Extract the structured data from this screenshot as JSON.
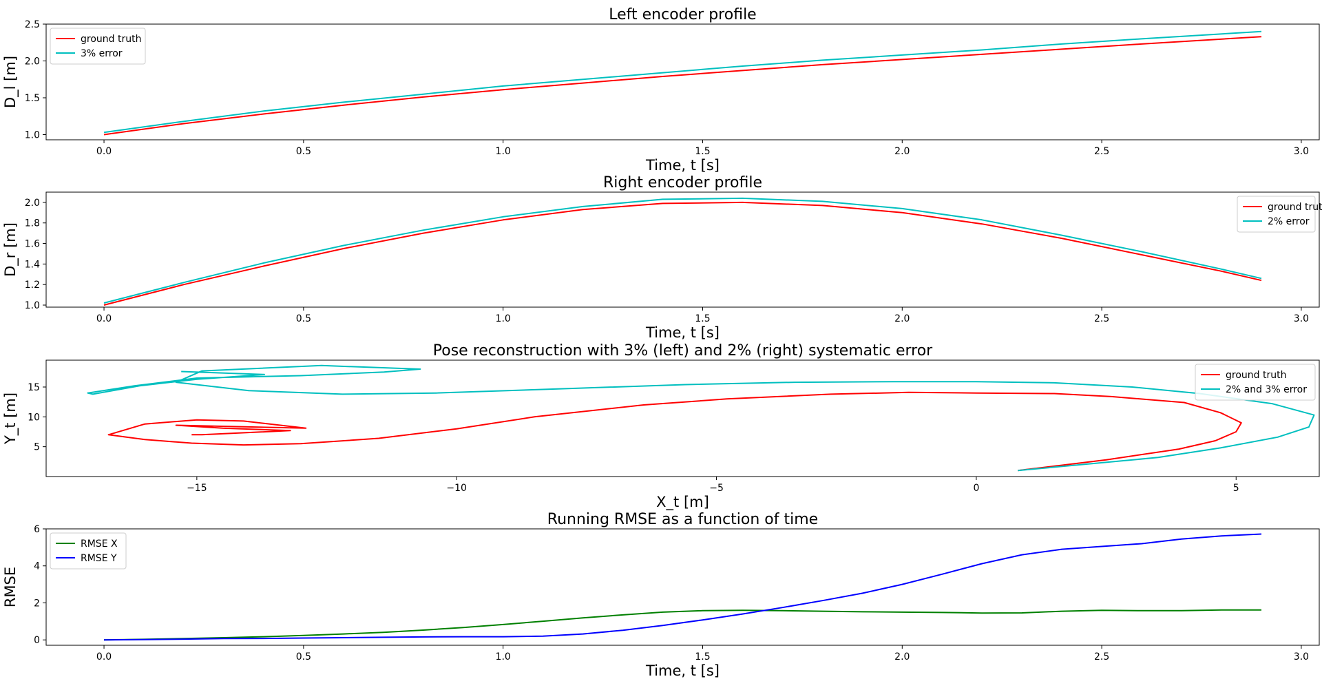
{
  "chart_data": [
    {
      "type": "line",
      "title": "Left encoder profile",
      "xlabel": "Time, t [s]",
      "ylabel": "D_l [m]",
      "xlim": [
        -0.145,
        3.045
      ],
      "ylim": [
        0.93,
        2.5
      ],
      "xticks": [
        0.0,
        0.5,
        1.0,
        1.5,
        2.0,
        2.5,
        3.0
      ],
      "yticks": [
        1.0,
        1.5,
        2.0,
        2.5
      ],
      "grid": false,
      "legend": "top-left",
      "series": [
        {
          "name": "ground truth",
          "color": "#ff0000",
          "x": [
            0.0,
            0.2,
            0.4,
            0.6,
            0.8,
            1.0,
            1.2,
            1.4,
            1.6,
            1.8,
            2.0,
            2.2,
            2.4,
            2.6,
            2.9
          ],
          "y": [
            1.0,
            1.15,
            1.28,
            1.4,
            1.51,
            1.61,
            1.7,
            1.79,
            1.87,
            1.95,
            2.02,
            2.09,
            2.16,
            2.23,
            2.33
          ]
        },
        {
          "name": "3% error",
          "color": "#00bfbf",
          "x": [
            0.0,
            0.2,
            0.4,
            0.6,
            0.8,
            1.0,
            1.2,
            1.4,
            1.6,
            1.8,
            2.0,
            2.2,
            2.4,
            2.6,
            2.9
          ],
          "y": [
            1.03,
            1.18,
            1.32,
            1.44,
            1.55,
            1.66,
            1.75,
            1.84,
            1.93,
            2.01,
            2.08,
            2.15,
            2.23,
            2.3,
            2.4
          ]
        }
      ]
    },
    {
      "type": "line",
      "title": "Right encoder profile",
      "xlabel": "Time, t [s]",
      "ylabel": "D_r [m]",
      "xlim": [
        -0.145,
        3.045
      ],
      "ylim": [
        0.98,
        2.1
      ],
      "xticks": [
        0.0,
        0.5,
        1.0,
        1.5,
        2.0,
        2.5,
        3.0
      ],
      "yticks": [
        1.0,
        1.2,
        1.4,
        1.6,
        1.8,
        2.0
      ],
      "grid": false,
      "legend": "top-right",
      "series": [
        {
          "name": "ground truth",
          "color": "#ff0000",
          "x": [
            0.0,
            0.2,
            0.4,
            0.6,
            0.8,
            1.0,
            1.2,
            1.4,
            1.6,
            1.8,
            2.0,
            2.2,
            2.4,
            2.6,
            2.8,
            2.9
          ],
          "y": [
            1.0,
            1.2,
            1.38,
            1.55,
            1.7,
            1.83,
            1.93,
            1.99,
            2.0,
            1.97,
            1.9,
            1.79,
            1.65,
            1.49,
            1.33,
            1.24
          ]
        },
        {
          "name": "2% error",
          "color": "#00bfbf",
          "x": [
            0.0,
            0.2,
            0.4,
            0.6,
            0.8,
            1.0,
            1.2,
            1.4,
            1.6,
            1.8,
            2.0,
            2.2,
            2.4,
            2.6,
            2.8,
            2.9
          ],
          "y": [
            1.02,
            1.22,
            1.41,
            1.58,
            1.73,
            1.86,
            1.96,
            2.03,
            2.04,
            2.01,
            1.94,
            1.83,
            1.68,
            1.52,
            1.35,
            1.26
          ]
        }
      ]
    },
    {
      "type": "line",
      "title": "Pose reconstruction with 3% (left) and 2% (right) systematic error",
      "xlabel": "X_t [m]",
      "ylabel": "Y_t [m]",
      "xlim": [
        -17.9,
        6.6
      ],
      "ylim": [
        0,
        19.5
      ],
      "xticks": [
        -15,
        -10,
        -5,
        0,
        5
      ],
      "yticks": [
        5,
        10,
        15
      ],
      "grid": false,
      "legend": "top-right",
      "series": [
        {
          "name": "ground truth",
          "color": "#ff0000",
          "x": [
            0.8,
            2.5,
            3.9,
            4.6,
            5.0,
            5.1,
            4.7,
            4.0,
            2.6,
            1.5,
            0.0,
            -1.3,
            -2.8,
            -4.8,
            -6.4,
            -8.5,
            -10.0,
            -11.5,
            -13.0,
            -14.1,
            -15.1,
            -16.0,
            -16.7,
            -16.0,
            -15.0,
            -14.1,
            -12.9,
            -15.4,
            -14.5,
            -13.2,
            -14.9,
            -15.1
          ],
          "y": [
            1.0,
            2.8,
            4.6,
            6.0,
            7.5,
            9.0,
            10.7,
            12.4,
            13.4,
            13.9,
            14.0,
            14.1,
            13.8,
            13.0,
            12.0,
            10.0,
            8.0,
            6.4,
            5.5,
            5.3,
            5.6,
            6.2,
            7.0,
            8.8,
            9.5,
            9.3,
            8.1,
            8.6,
            8.1,
            7.7,
            7.0,
            7.0
          ]
        },
        {
          "name": "2% and 3% error",
          "color": "#00bfbf",
          "x": [
            0.8,
            3.5,
            4.7,
            5.8,
            6.4,
            6.5,
            5.7,
            4.3,
            3.0,
            1.5,
            0.0,
            -1.6,
            -3.5,
            -5.6,
            -8.0,
            -10.4,
            -12.2,
            -14.0,
            -15.4,
            -14.9,
            -12.6,
            -10.7,
            -11.4,
            -13.0,
            -15.0,
            -16.2,
            -17.1,
            -17.0,
            -16.1,
            -15.0,
            -13.7,
            -15.3
          ],
          "y": [
            1.0,
            3.2,
            4.8,
            6.6,
            8.3,
            10.3,
            12.2,
            13.9,
            15.0,
            15.7,
            15.9,
            15.9,
            15.8,
            15.4,
            14.7,
            14.0,
            13.8,
            14.4,
            15.8,
            17.7,
            18.6,
            18.0,
            17.5,
            16.9,
            16.5,
            15.2,
            14.0,
            13.8,
            15.2,
            16.3,
            17.1,
            17.6
          ]
        }
      ]
    },
    {
      "type": "line",
      "title": "Running RMSE as a function of time",
      "xlabel": "Time, t [s]",
      "ylabel": "RMSE",
      "xlim": [
        -0.145,
        3.045
      ],
      "ylim": [
        -0.29,
        6.0
      ],
      "xticks": [
        0.0,
        0.5,
        1.0,
        1.5,
        2.0,
        2.5,
        3.0
      ],
      "yticks": [
        0,
        2,
        4,
        6
      ],
      "grid": false,
      "legend": "top-left",
      "series": [
        {
          "name": "RMSE X",
          "color": "#008000",
          "x": [
            0.0,
            0.1,
            0.2,
            0.3,
            0.4,
            0.5,
            0.6,
            0.7,
            0.8,
            0.9,
            1.0,
            1.1,
            1.2,
            1.3,
            1.4,
            1.5,
            1.6,
            1.7,
            1.8,
            1.9,
            2.0,
            2.1,
            2.2,
            2.3,
            2.4,
            2.5,
            2.6,
            2.7,
            2.8,
            2.9
          ],
          "y": [
            0.0,
            0.03,
            0.07,
            0.12,
            0.17,
            0.24,
            0.32,
            0.41,
            0.53,
            0.67,
            0.83,
            1.01,
            1.19,
            1.35,
            1.5,
            1.58,
            1.6,
            1.58,
            1.55,
            1.52,
            1.5,
            1.48,
            1.45,
            1.46,
            1.55,
            1.6,
            1.58,
            1.58,
            1.62,
            1.62
          ]
        },
        {
          "name": "RMSE Y",
          "color": "#0000ff",
          "x": [
            0.0,
            0.1,
            0.2,
            0.3,
            0.4,
            0.5,
            0.6,
            0.7,
            0.8,
            0.9,
            1.0,
            1.1,
            1.2,
            1.3,
            1.4,
            1.5,
            1.6,
            1.7,
            1.8,
            1.9,
            2.0,
            2.1,
            2.2,
            2.3,
            2.4,
            2.5,
            2.6,
            2.7,
            2.8,
            2.9
          ],
          "y": [
            0.0,
            0.02,
            0.04,
            0.07,
            0.08,
            0.1,
            0.12,
            0.14,
            0.16,
            0.17,
            0.17,
            0.2,
            0.32,
            0.52,
            0.78,
            1.08,
            1.4,
            1.75,
            2.12,
            2.52,
            3.0,
            3.55,
            4.12,
            4.6,
            4.9,
            5.05,
            5.2,
            5.45,
            5.62,
            5.72
          ]
        }
      ]
    }
  ]
}
